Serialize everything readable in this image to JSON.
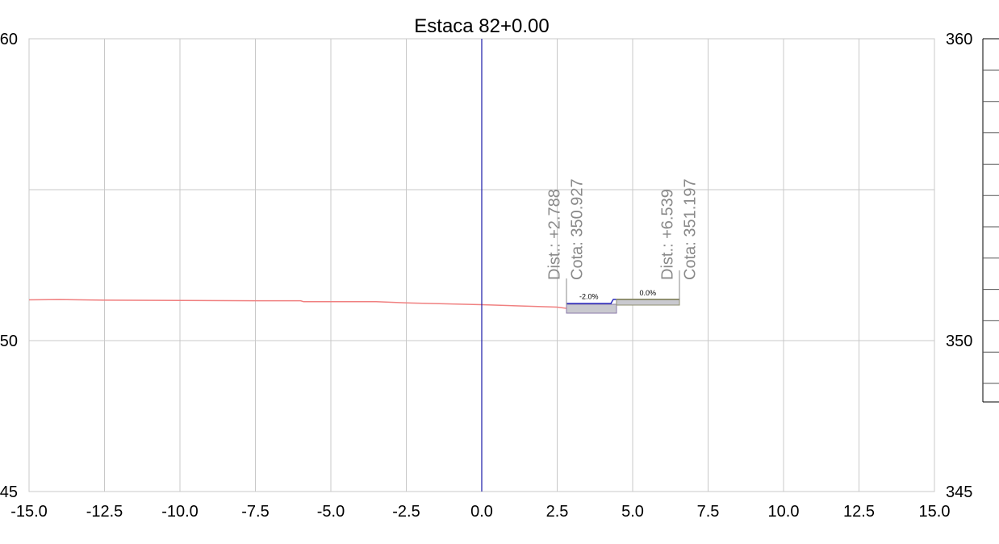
{
  "chart_data": {
    "type": "line",
    "title": "Estaca 82+0.00",
    "xlim": [
      -15,
      15
    ],
    "ylim": [
      345,
      360
    ],
    "x_ticks": [
      "-15.0",
      "-12.5",
      "-10.0",
      "-7.5",
      "-5.0",
      "-2.5",
      "0.0",
      "2.5",
      "5.0",
      "7.5",
      "10.0",
      "12.5",
      "15.0"
    ],
    "y_ticks_left": [
      "45",
      "50",
      "60"
    ],
    "y_ticks_right": [
      "345",
      "350",
      "360"
    ],
    "grid": true,
    "centerline_x": 0,
    "series": [
      {
        "color": "#f08080",
        "x": [
          -15.0,
          -14.0,
          -12.5,
          -10.0,
          -7.5,
          -6.0,
          -5.9,
          -5.0,
          -3.5,
          -2.5,
          0.0,
          2.5,
          2.8
        ],
        "y": [
          351.35,
          351.36,
          351.34,
          351.33,
          351.32,
          351.32,
          351.29,
          351.29,
          351.29,
          351.25,
          351.19,
          351.11,
          351.07
        ]
      }
    ],
    "annotations": [
      {
        "x": 2.788,
        "dist_label": "Dist.: +2.788",
        "cota_label": "Cota: 350.927"
      },
      {
        "x": 6.539,
        "dist_label": "Dist.: +6.539",
        "cota_label": "Cota: 351.197"
      }
    ],
    "slope_labels": [
      {
        "text": "-2.0%",
        "x": 3.55,
        "y": 351.38
      },
      {
        "text": "0.0%",
        "x": 5.5,
        "y": 351.5
      }
    ]
  }
}
